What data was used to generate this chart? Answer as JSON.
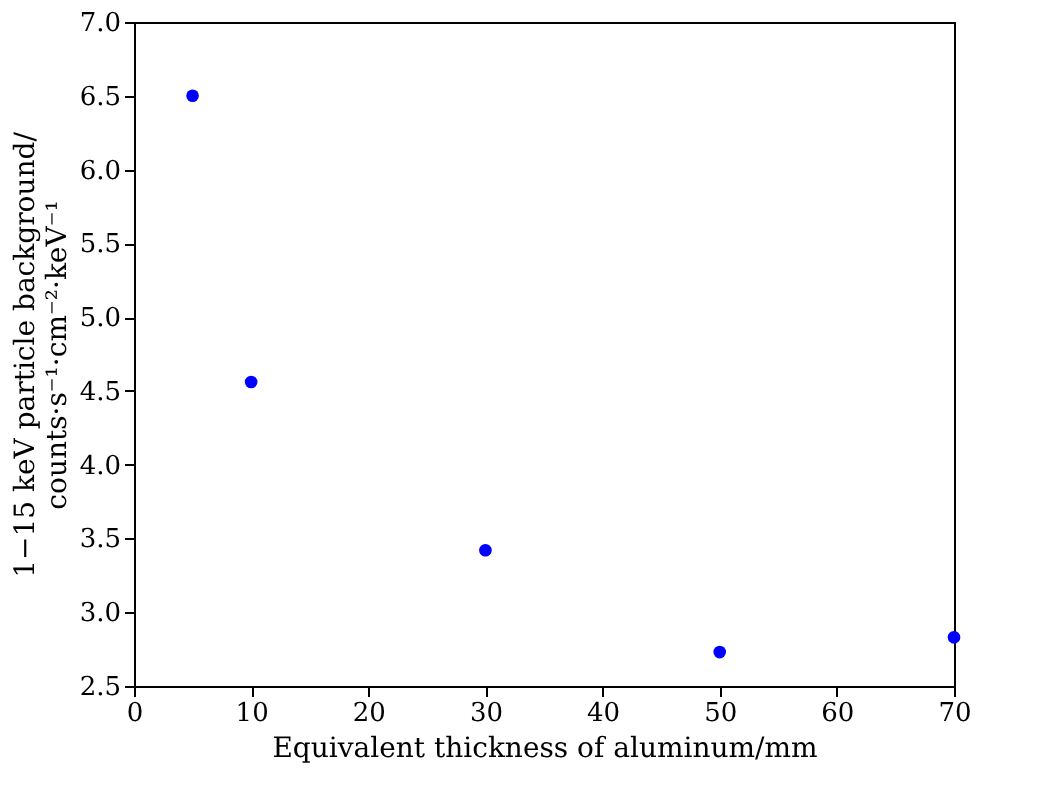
{
  "chart_data": {
    "type": "scatter",
    "xlabel": "Equivalent thickness of aluminum/mm",
    "ylabel": "1−15 keV particle background/\ncounts·s⁻¹·cm⁻²·keV⁻¹",
    "x": [
      5,
      10,
      30,
      50,
      70
    ],
    "series": [
      {
        "color": "#0000ff",
        "values": [
          6.5,
          4.56,
          3.42,
          2.73,
          2.83
        ]
      }
    ],
    "xlim": [
      0,
      70
    ],
    "xticks": [
      0,
      10,
      20,
      30,
      40,
      50,
      60,
      70
    ],
    "ylim": [
      2.5,
      7.0
    ],
    "yticks": [
      {
        "value": 2.5,
        "label": "2.5"
      },
      {
        "value": 3.0,
        "label": "3.0"
      },
      {
        "value": 3.5,
        "label": "3.5"
      },
      {
        "value": 4.0,
        "label": "4.0"
      },
      {
        "value": 4.5,
        "label": "4.5"
      },
      {
        "value": 5.0,
        "label": "5.0"
      },
      {
        "value": 5.5,
        "label": "5.5"
      },
      {
        "value": 6.0,
        "label": "6.0"
      },
      {
        "value": 6.5,
        "label": "6.5"
      },
      {
        "value": 7.0,
        "label": "7.0"
      }
    ],
    "grid": false,
    "legend": false,
    "marker": "circle"
  }
}
